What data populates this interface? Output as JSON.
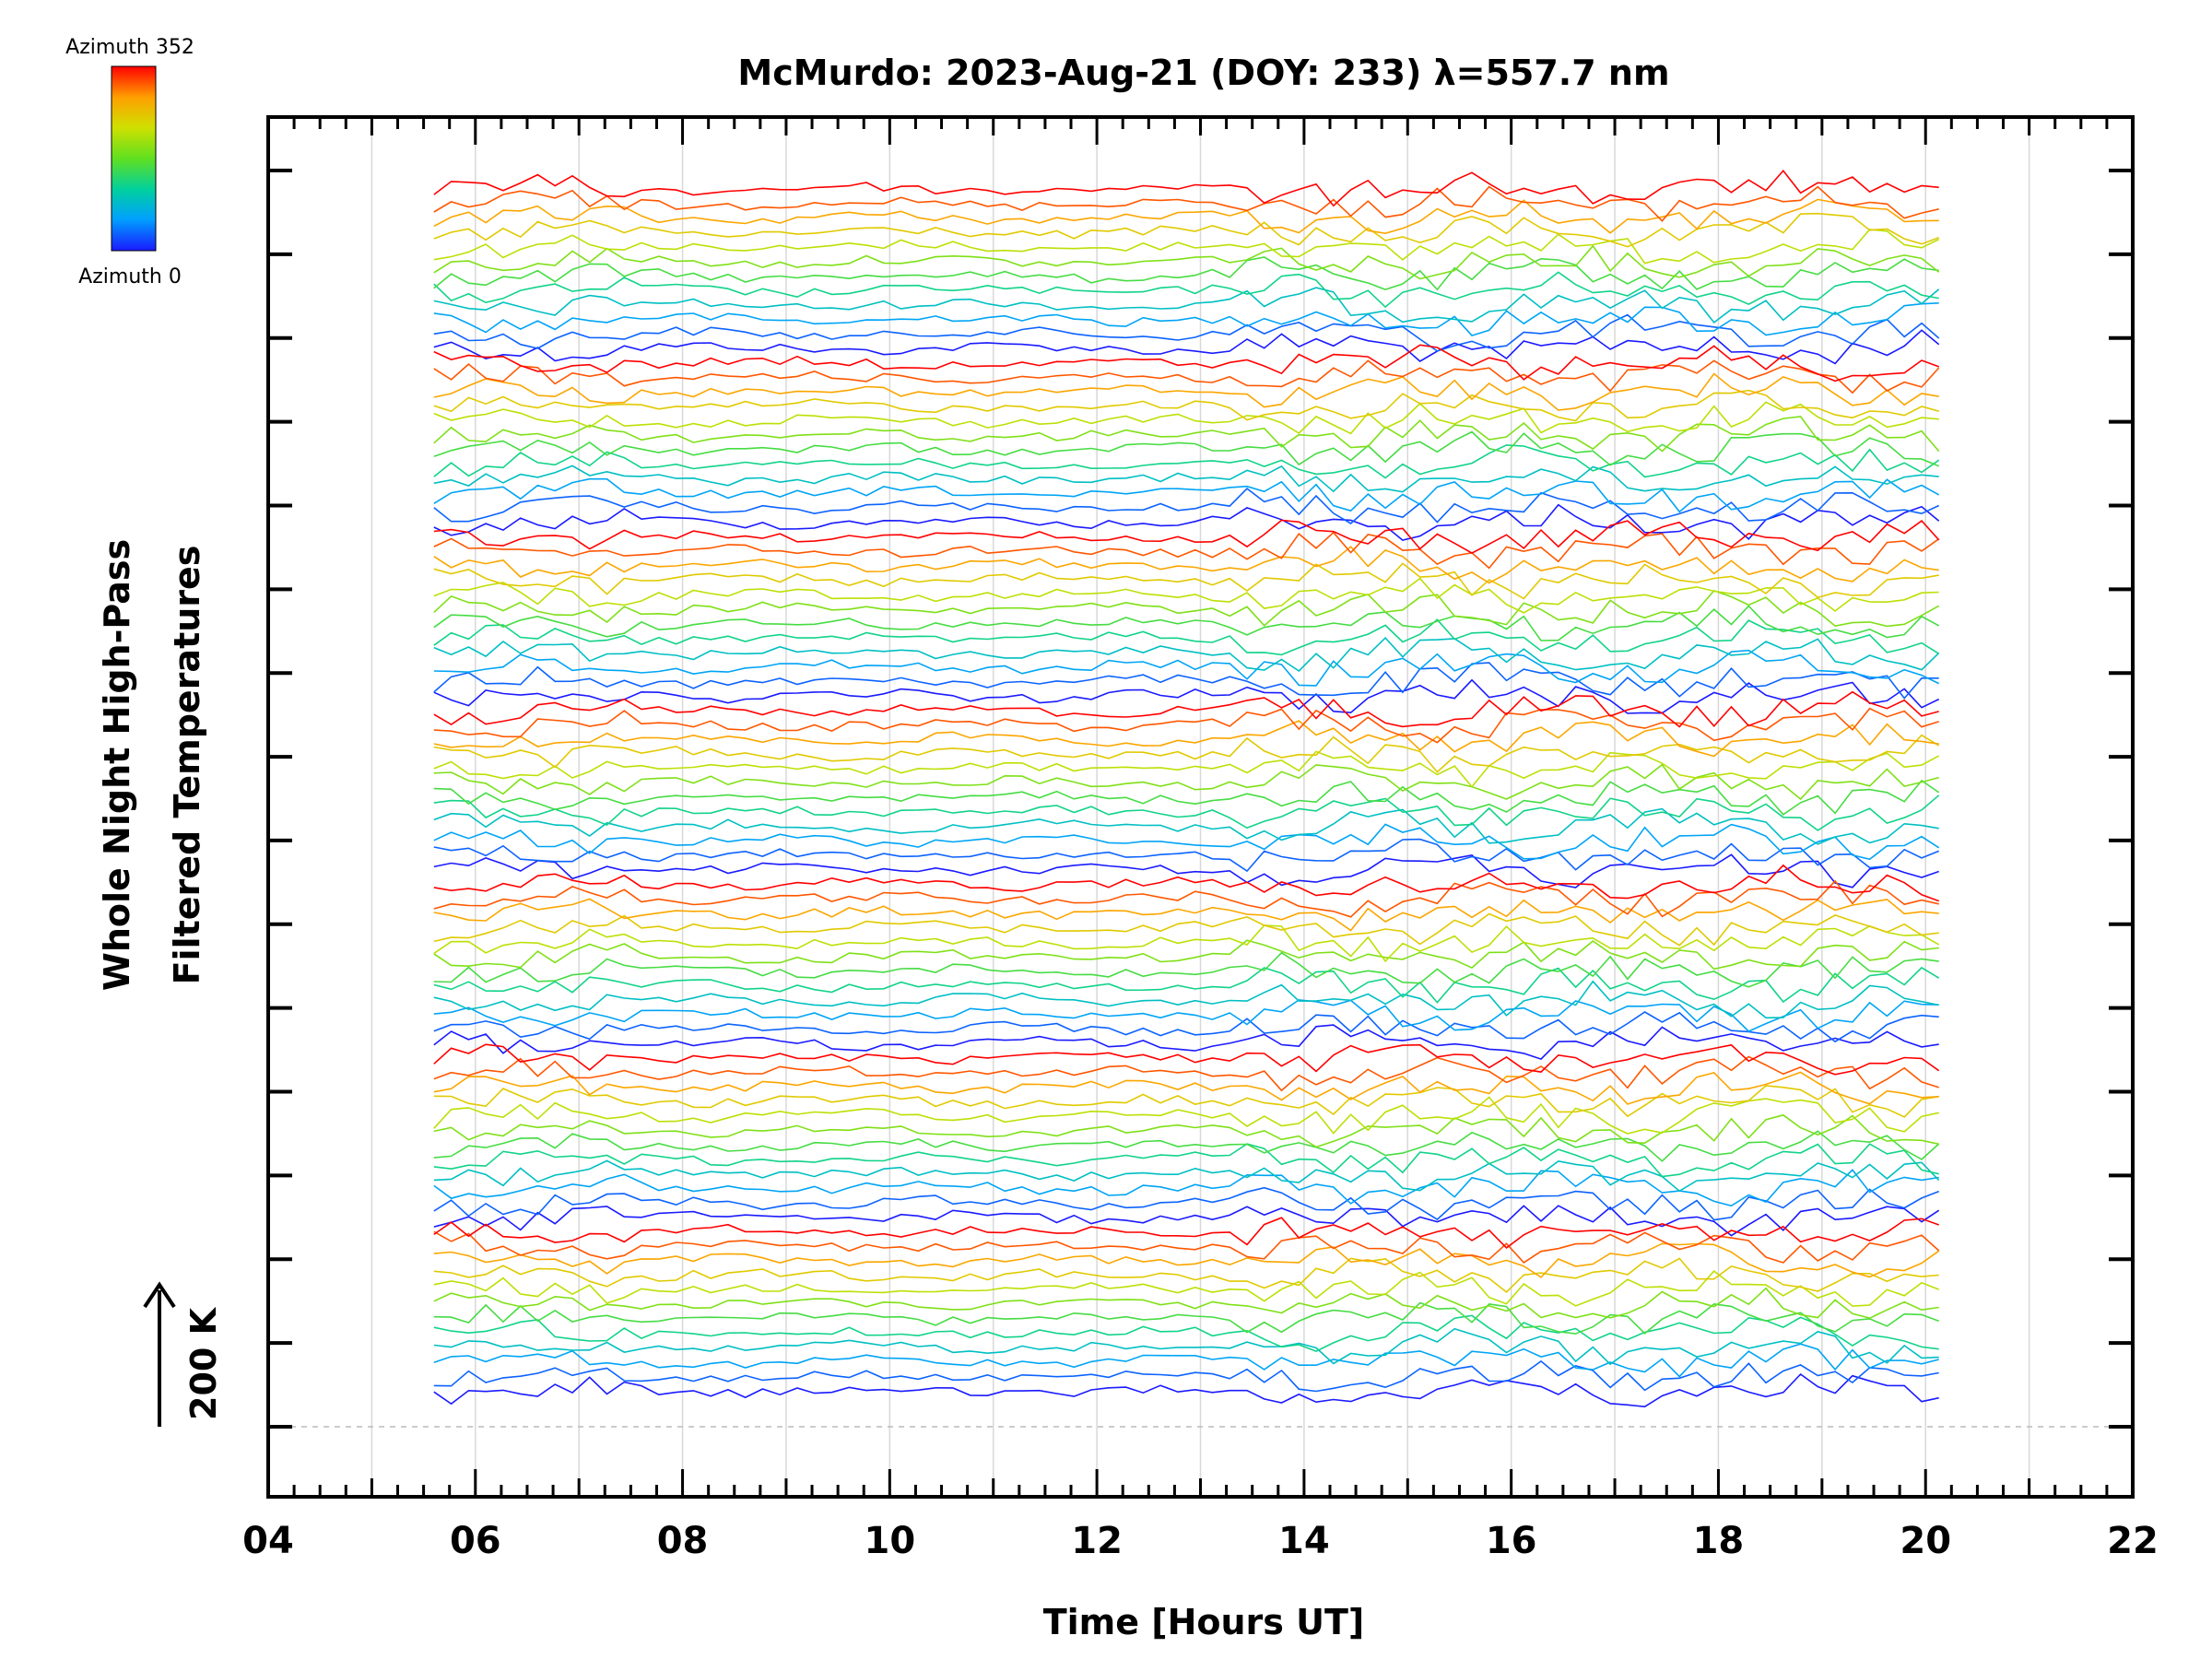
{
  "chart_data": {
    "type": "line",
    "title": "McMurdo: 2023-Aug-21 (DOY: 233) λ=557.7 nm",
    "xlabel": "Time [Hours UT]",
    "ylabel_line1": "Whole Night High-Pass",
    "ylabel_line2": "Filtered Temperatures",
    "scale_label": "200 K",
    "xlim": [
      4,
      22
    ],
    "x_ticks": [
      "04",
      "06",
      "08",
      "10",
      "12",
      "14",
      "16",
      "18",
      "20",
      "22"
    ],
    "x_tick_values": [
      4,
      6,
      8,
      10,
      12,
      14,
      16,
      18,
      20,
      22
    ],
    "x_minor_step": 0.25,
    "y_major_ticks": 16,
    "data_start_hour": 5.6,
    "data_end_hour": 20.2,
    "sample_interval_hours": 0.167,
    "active_period_start_hour": 13.4,
    "colorbar": {
      "max_label": "Azimuth 352",
      "min_label": "Azimuth 0",
      "azimuth_min": 0,
      "azimuth_max": 352,
      "colormap": [
        "#1a1aff",
        "#00a0ff",
        "#00d0a0",
        "#60e020",
        "#d0e000",
        "#ffa000",
        "#ff0000"
      ]
    },
    "groups": 7,
    "series_per_group": 12,
    "azimuth_step": 32,
    "baseline_color": "#bbbbbb",
    "gridline_color": "#d8d8d8"
  }
}
